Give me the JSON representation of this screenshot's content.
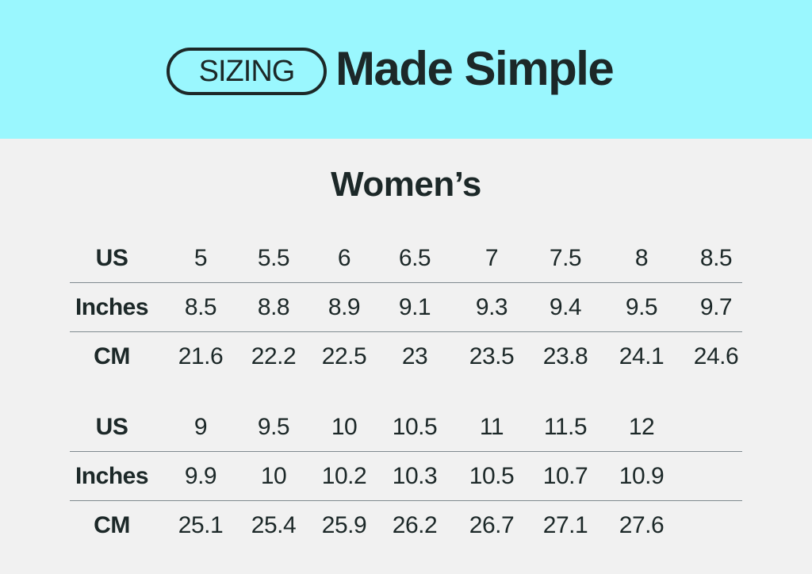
{
  "header": {
    "badge": "SIZING",
    "headline": "Made Simple",
    "background": "#9af7fe"
  },
  "section_title": "Women’s",
  "tables": [
    {
      "rows": [
        {
          "label": "US",
          "values": [
            "5",
            "5.5",
            "6",
            "6.5",
            "7",
            "7.5",
            "8",
            "8.5"
          ]
        },
        {
          "label": "Inches",
          "values": [
            "8.5",
            "8.8",
            "8.9",
            "9.1",
            "9.3",
            "9.4",
            "9.5",
            "9.7"
          ]
        },
        {
          "label": "CM",
          "values": [
            "21.6",
            "22.2",
            "22.5",
            "23",
            "23.5",
            "23.8",
            "24.1",
            "24.6"
          ]
        }
      ]
    },
    {
      "rows": [
        {
          "label": "US",
          "values": [
            "9",
            "9.5",
            "10",
            "10.5",
            "11",
            "11.5",
            "12"
          ]
        },
        {
          "label": "Inches",
          "values": [
            "9.9",
            "10",
            "10.2",
            "10.3",
            "10.5",
            "10.7",
            "10.9"
          ]
        },
        {
          "label": "CM",
          "values": [
            "25.1",
            "25.4",
            "25.9",
            "26.2",
            "26.7",
            "27.1",
            "27.6"
          ]
        }
      ]
    }
  ]
}
